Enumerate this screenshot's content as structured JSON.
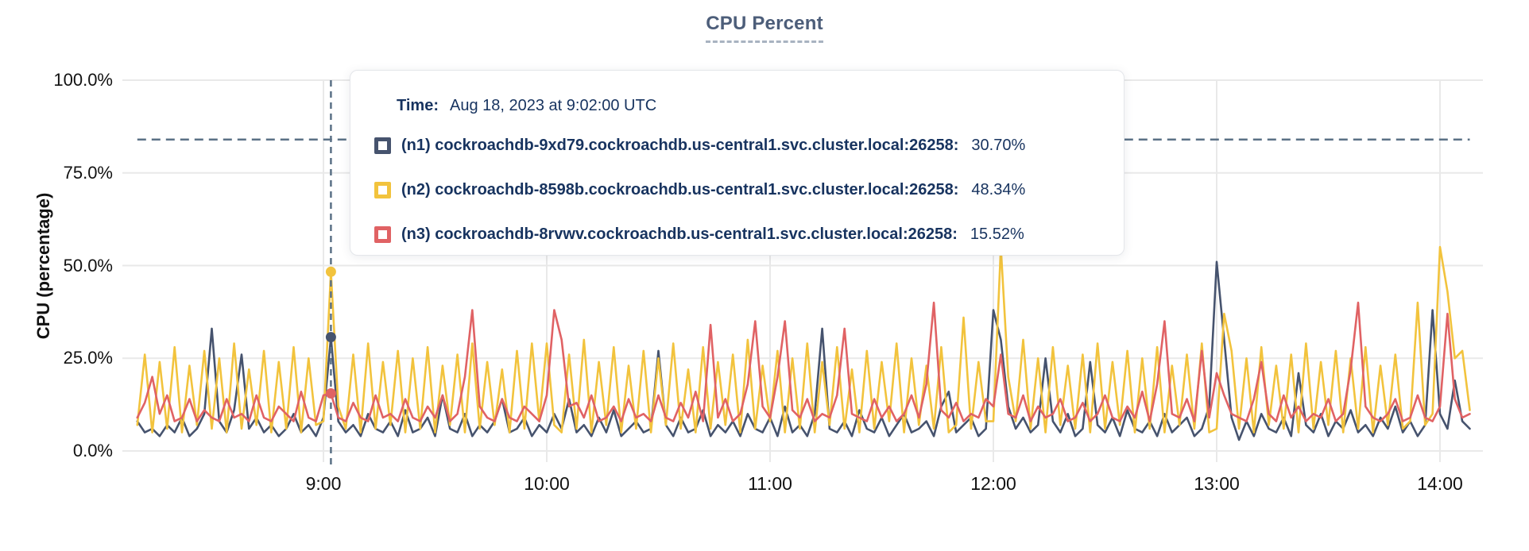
{
  "title": "CPU Percent",
  "y_axis": {
    "label": "CPU (percentage)"
  },
  "tooltip": {
    "time_label": "Time:",
    "time_value": "Aug 18, 2023 at 9:02:00 UTC",
    "rows": [
      {
        "name": "(n1) cockroachdb-9xd79.cockroachdb.us-central1.svc.cluster.local:26258:",
        "value": "30.70%",
        "color": "#46536e"
      },
      {
        "name": "(n2) cockroachdb-8598b.cockroachdb.us-central1.svc.cluster.local:26258:",
        "value": "48.34%",
        "color": "#f2c33d"
      },
      {
        "name": "(n3) cockroachdb-8rvwv.cockroachdb.us-central1.svc.cluster.local:26258:",
        "value": "15.52%",
        "color": "#e06264"
      }
    ]
  },
  "colors": {
    "title": "#4d5e7a",
    "grid": "#e9e9e9",
    "dashed_guides": "#5b7186",
    "tooltip_text": "#17335f",
    "series_n1": "#46536e",
    "series_n2": "#f2c33d",
    "series_n3": "#e06264"
  },
  "chart_data": {
    "type": "line",
    "title": "CPU Percent",
    "ylabel": "CPU (percentage)",
    "ylim": [
      0,
      100
    ],
    "grid": true,
    "legend_position": "tooltip-overlay",
    "y_ticks": [
      {
        "label": "100.0%",
        "pct": 100
      },
      {
        "label": "75.0%",
        "pct": 75
      },
      {
        "label": "50.0%",
        "pct": 50
      },
      {
        "label": "25.0%",
        "pct": 25
      },
      {
        "label": "0.0%",
        "pct": 0
      }
    ],
    "x_ticks": [
      "9:00",
      "10:00",
      "11:00",
      "12:00",
      "13:00",
      "14:00"
    ],
    "x_range": [
      "8:10",
      "14:08"
    ],
    "step_minutes": 2,
    "start_offset_min_from_9": -50,
    "threshold_line_pct": 84,
    "hover": {
      "time": "9:02:00 UTC",
      "index": 26,
      "points": [
        {
          "series": 0,
          "pct": 30.7
        },
        {
          "series": 1,
          "pct": 48.34
        },
        {
          "series": 2,
          "pct": 15.52
        }
      ]
    },
    "series": [
      {
        "name": "(n1) cockroachdb-9xd79.cockroachdb.us-central1.svc.cluster.local:26258",
        "color": "#46536e",
        "values": [
          8,
          5,
          6,
          4,
          7,
          5,
          9,
          4,
          6,
          10,
          33,
          8,
          5,
          11,
          26,
          6,
          9,
          5,
          7,
          4,
          6,
          10,
          5,
          7,
          4,
          9,
          30.7,
          8,
          5,
          7,
          4,
          10,
          6,
          5,
          8,
          4,
          11,
          5,
          6,
          9,
          4,
          15,
          6,
          5,
          10,
          4,
          7,
          5,
          8,
          14,
          5,
          6,
          9,
          4,
          7,
          5,
          10,
          6,
          14,
          5,
          7,
          4,
          9,
          5,
          11,
          4,
          6,
          8,
          5,
          6,
          27,
          7,
          4,
          9,
          5,
          6,
          11,
          4,
          7,
          5,
          8,
          4,
          10,
          6,
          5,
          9,
          4,
          12,
          5,
          7,
          4,
          10,
          33,
          6,
          5,
          8,
          4,
          11,
          6,
          5,
          9,
          4,
          7,
          10,
          5,
          6,
          8,
          4,
          12,
          16,
          5,
          7,
          9,
          4,
          6,
          38,
          30,
          12,
          6,
          9,
          5,
          7,
          25,
          8,
          5,
          10,
          4,
          6,
          24,
          7,
          5,
          9,
          4,
          11,
          6,
          5,
          8,
          4,
          10,
          5,
          7,
          9,
          4,
          6,
          12,
          51,
          30,
          9,
          3,
          8,
          4,
          10,
          6,
          5,
          9,
          4,
          21,
          7,
          5,
          10,
          4,
          8,
          6,
          11,
          5,
          7,
          4,
          9,
          6,
          12,
          5,
          8,
          4,
          7,
          38,
          10,
          6,
          19,
          8,
          6
        ]
      },
      {
        "name": "(n2) cockroachdb-8598b.cockroachdb.us-central1.svc.cluster.local:26258",
        "color": "#f2c33d",
        "values": [
          7,
          26,
          5,
          24,
          6,
          28,
          5,
          23,
          7,
          27,
          6,
          25,
          5,
          29,
          6,
          22,
          7,
          27,
          5,
          24,
          6,
          28,
          5,
          25,
          7,
          8,
          48.3,
          12,
          6,
          26,
          5,
          29,
          6,
          24,
          7,
          27,
          5,
          25,
          6,
          28,
          5,
          23,
          7,
          26,
          5,
          29,
          6,
          24,
          7,
          22,
          5,
          27,
          6,
          29,
          8,
          29,
          7,
          5,
          26,
          6,
          30,
          5,
          24,
          7,
          28,
          5,
          23,
          6,
          27,
          5,
          25,
          7,
          29,
          6,
          22,
          5,
          28,
          6,
          24,
          7,
          26,
          5,
          30,
          6,
          23,
          8,
          27,
          5,
          25,
          6,
          29,
          5,
          24,
          7,
          28,
          6,
          22,
          5,
          27,
          6,
          24,
          8,
          29,
          5,
          25,
          7,
          23,
          6,
          28,
          5,
          7,
          36,
          6,
          24,
          8,
          8,
          55,
          20,
          8,
          30,
          6,
          25,
          5,
          28,
          7,
          23,
          6,
          26,
          5,
          29,
          6,
          24,
          7,
          27,
          5,
          25,
          6,
          28,
          5,
          23,
          7,
          26,
          6,
          29,
          5,
          6,
          37,
          27,
          6,
          25,
          5,
          28,
          7,
          23,
          6,
          26,
          5,
          29,
          6,
          24,
          7,
          27,
          5,
          25,
          6,
          28,
          5,
          23,
          7,
          26,
          6,
          8,
          40,
          7,
          10,
          55,
          43,
          25,
          27,
          11
        ]
      },
      {
        "name": "(n3) cockroachdb-8rvwv.cockroachdb.us-central1.svc.cluster.local:26258",
        "color": "#e06264",
        "values": [
          9,
          13,
          20,
          10,
          15,
          8,
          9,
          14,
          8,
          11,
          9,
          8,
          14,
          9,
          10,
          8,
          15,
          9,
          8,
          12,
          10,
          8,
          16,
          9,
          8,
          15,
          15.5,
          9,
          8,
          13,
          9,
          8,
          15,
          9,
          10,
          8,
          14,
          9,
          8,
          12,
          9,
          15,
          8,
          10,
          20,
          38,
          12,
          9,
          8,
          14,
          9,
          8,
          12,
          10,
          8,
          15,
          38,
          30,
          12,
          13,
          9,
          15,
          8,
          9,
          12,
          8,
          14,
          9,
          10,
          8,
          15,
          9,
          8,
          13,
          9,
          16,
          8,
          34,
          9,
          14,
          8,
          10,
          18,
          35,
          12,
          9,
          20,
          35,
          11,
          9,
          14,
          8,
          10,
          9,
          15,
          33,
          10,
          9,
          8,
          14,
          9,
          12,
          8,
          10,
          15,
          9,
          18,
          40,
          11,
          9,
          13,
          8,
          10,
          9,
          14,
          12,
          26,
          10,
          9,
          15,
          8,
          12,
          9,
          10,
          14,
          8,
          9,
          13,
          8,
          10,
          15,
          9,
          8,
          12,
          9,
          16,
          8,
          18,
          35,
          10,
          9,
          14,
          8,
          27,
          9,
          21,
          15,
          10,
          9,
          8,
          14,
          24,
          10,
          8,
          15,
          9,
          12,
          8,
          10,
          9,
          14,
          8,
          10,
          22,
          40,
          12,
          9,
          8,
          10,
          14,
          8,
          9,
          15,
          9,
          8,
          12,
          37,
          14,
          9,
          10
        ]
      }
    ]
  }
}
